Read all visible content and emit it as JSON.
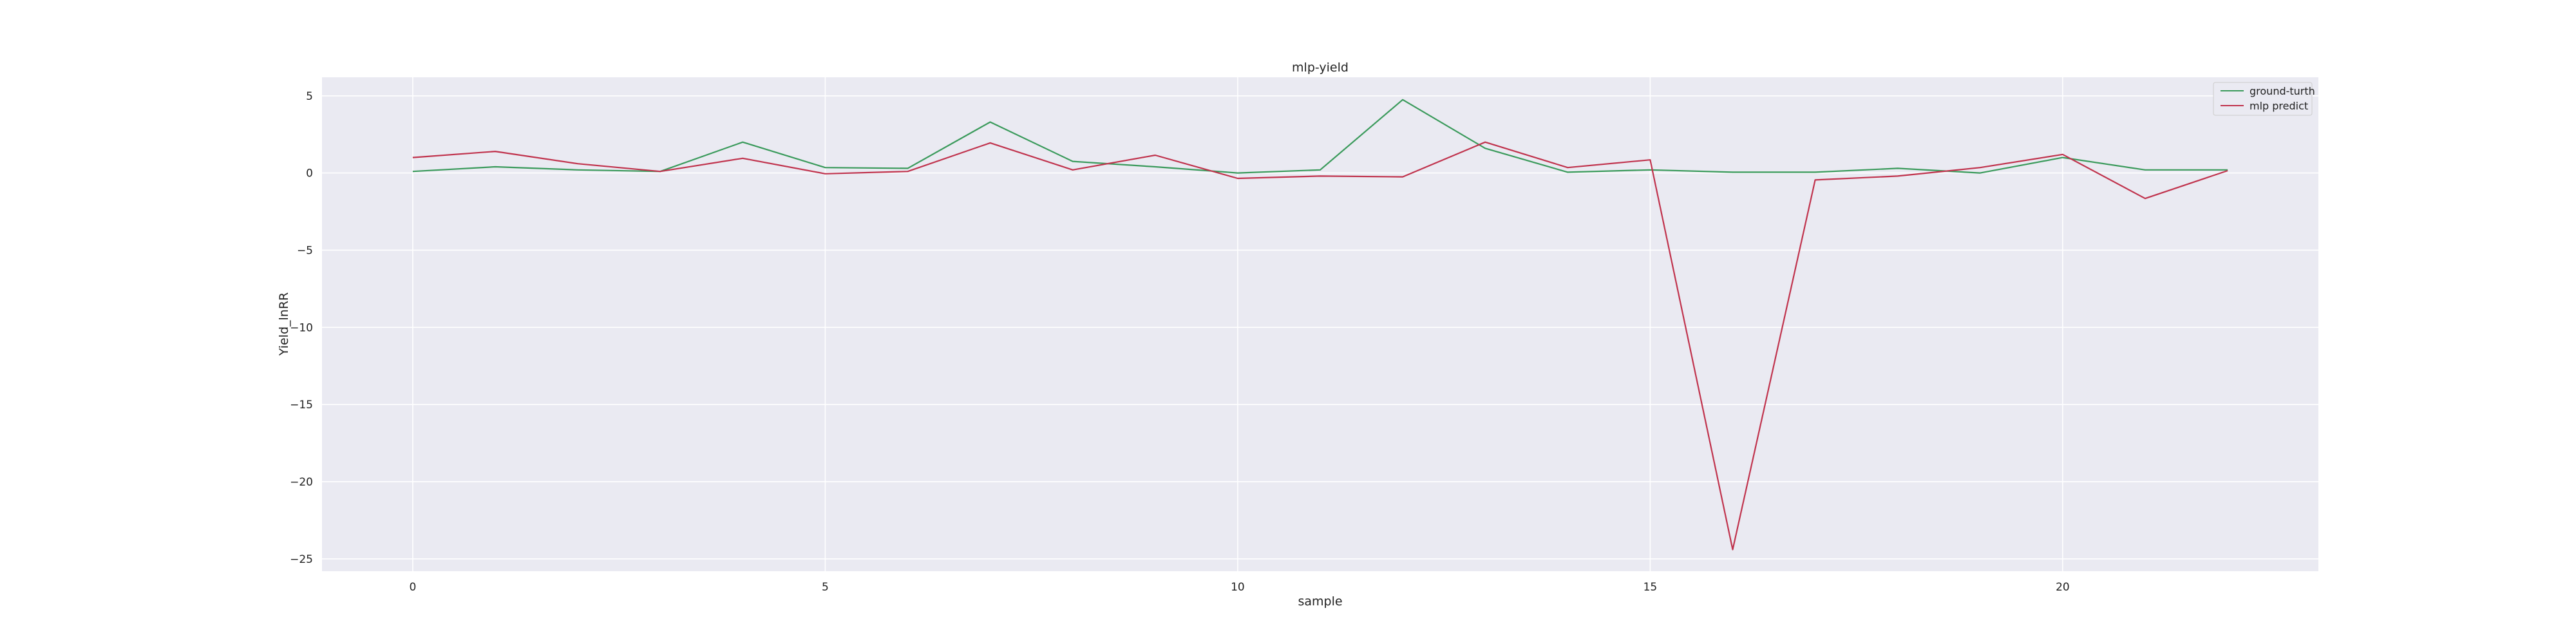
{
  "chart_data": {
    "type": "line",
    "title": "mlp-yield",
    "xlabel": "sample",
    "ylabel": "Yield_lnRR",
    "xlim": [
      -1.1,
      23.1
    ],
    "ylim": [
      -25.8,
      6.2
    ],
    "xticks": [
      0,
      5,
      10,
      15,
      20
    ],
    "yticks": [
      5,
      0,
      -5,
      -10,
      -15,
      -20,
      -25
    ],
    "grid": true,
    "legend_position": "top-right",
    "x": [
      0,
      1,
      2,
      3,
      4,
      5,
      6,
      7,
      8,
      9,
      10,
      11,
      12,
      13,
      14,
      15,
      16,
      17,
      18,
      19,
      20,
      21,
      22
    ],
    "series": [
      {
        "name": "ground-turth",
        "color": "#3a9a5b",
        "values": [
          0.1,
          0.4,
          0.2,
          0.1,
          2.0,
          0.35,
          0.3,
          3.3,
          0.75,
          0.4,
          0.0,
          0.2,
          4.75,
          1.6,
          0.05,
          0.2,
          0.05,
          0.05,
          0.3,
          0.0,
          1.0,
          0.2,
          0.2
        ]
      },
      {
        "name": "mlp predict",
        "color": "#c0334d",
        "values": [
          1.0,
          1.4,
          0.6,
          0.1,
          0.95,
          -0.05,
          0.1,
          1.95,
          0.2,
          1.15,
          -0.35,
          -0.2,
          -0.25,
          2.0,
          0.35,
          0.85,
          -24.4,
          -0.45,
          -0.2,
          0.35,
          1.2,
          -1.65,
          0.15
        ]
      }
    ]
  }
}
